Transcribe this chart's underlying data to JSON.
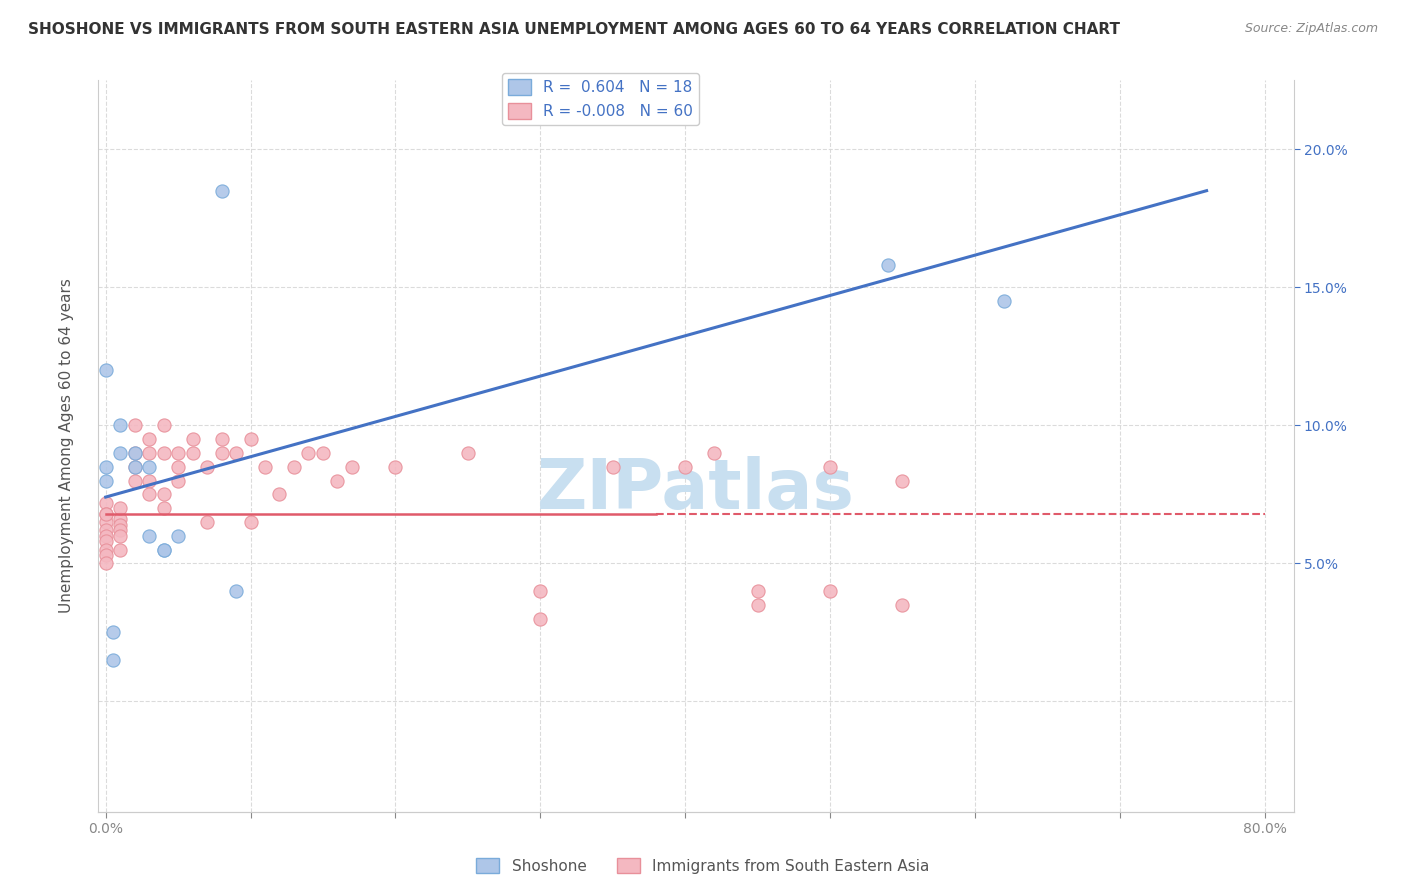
{
  "title": "SHOSHONE VS IMMIGRANTS FROM SOUTH EASTERN ASIA UNEMPLOYMENT AMONG AGES 60 TO 64 YEARS CORRELATION CHART",
  "source": "Source: ZipAtlas.com",
  "ylabel": "Unemployment Among Ages 60 to 64 years",
  "xlim": [
    -0.005,
    0.82
  ],
  "ylim": [
    -0.04,
    0.225
  ],
  "xticks": [
    0.0,
    0.1,
    0.2,
    0.3,
    0.4,
    0.5,
    0.6,
    0.7,
    0.8
  ],
  "xticklabels": [
    "0.0%",
    "",
    "",
    "",
    "",
    "",
    "",
    "",
    "80.0%"
  ],
  "yticks": [
    0.0,
    0.05,
    0.1,
    0.15,
    0.2
  ],
  "yticklabels": [
    "",
    "",
    "",
    "",
    ""
  ],
  "right_yticks": [
    0.05,
    0.1,
    0.15,
    0.2
  ],
  "right_yticklabels": [
    "5.0%",
    "10.0%",
    "15.0%",
    "20.0%"
  ],
  "background_color": "#ffffff",
  "grid_color": "#d8d8d8",
  "legend_R1": "R =  0.604",
  "legend_N1": "N = 18",
  "legend_R2": "R = -0.008",
  "legend_N2": "N = 60",
  "shoshone_color": "#aec6e8",
  "immigrant_color": "#f4b8c1",
  "shoshone_line_color": "#4472c4",
  "immigrant_line_color": "#e05a6a",
  "watermark": "ZIPatlas",
  "watermark_color": "#c8dff0",
  "shoshone_scatter": [
    [
      0.0,
      0.08
    ],
    [
      0.0,
      0.12
    ],
    [
      0.0,
      0.085
    ],
    [
      0.01,
      0.09
    ],
    [
      0.01,
      0.1
    ],
    [
      0.02,
      0.09
    ],
    [
      0.02,
      0.085
    ],
    [
      0.03,
      0.085
    ],
    [
      0.03,
      0.06
    ],
    [
      0.04,
      0.055
    ],
    [
      0.04,
      0.055
    ],
    [
      0.05,
      0.06
    ],
    [
      0.08,
      0.185
    ],
    [
      0.09,
      0.04
    ],
    [
      0.54,
      0.158
    ],
    [
      0.62,
      0.145
    ],
    [
      0.005,
      0.025
    ],
    [
      0.005,
      0.015
    ]
  ],
  "immigrant_scatter": [
    [
      0.0,
      0.072
    ],
    [
      0.0,
      0.068
    ],
    [
      0.0,
      0.065
    ],
    [
      0.0,
      0.062
    ],
    [
      0.0,
      0.06
    ],
    [
      0.0,
      0.058
    ],
    [
      0.0,
      0.055
    ],
    [
      0.0,
      0.053
    ],
    [
      0.0,
      0.05
    ],
    [
      0.0,
      0.068
    ],
    [
      0.01,
      0.066
    ],
    [
      0.01,
      0.064
    ],
    [
      0.01,
      0.062
    ],
    [
      0.01,
      0.07
    ],
    [
      0.01,
      0.06
    ],
    [
      0.01,
      0.055
    ],
    [
      0.02,
      0.1
    ],
    [
      0.02,
      0.09
    ],
    [
      0.02,
      0.085
    ],
    [
      0.02,
      0.08
    ],
    [
      0.03,
      0.095
    ],
    [
      0.03,
      0.09
    ],
    [
      0.03,
      0.08
    ],
    [
      0.03,
      0.075
    ],
    [
      0.04,
      0.1
    ],
    [
      0.04,
      0.09
    ],
    [
      0.04,
      0.075
    ],
    [
      0.04,
      0.07
    ],
    [
      0.05,
      0.09
    ],
    [
      0.05,
      0.085
    ],
    [
      0.05,
      0.08
    ],
    [
      0.06,
      0.095
    ],
    [
      0.06,
      0.09
    ],
    [
      0.07,
      0.085
    ],
    [
      0.07,
      0.065
    ],
    [
      0.08,
      0.095
    ],
    [
      0.08,
      0.09
    ],
    [
      0.09,
      0.09
    ],
    [
      0.1,
      0.095
    ],
    [
      0.1,
      0.065
    ],
    [
      0.11,
      0.085
    ],
    [
      0.12,
      0.075
    ],
    [
      0.13,
      0.085
    ],
    [
      0.14,
      0.09
    ],
    [
      0.15,
      0.09
    ],
    [
      0.16,
      0.08
    ],
    [
      0.17,
      0.085
    ],
    [
      0.2,
      0.085
    ],
    [
      0.25,
      0.09
    ],
    [
      0.3,
      0.04
    ],
    [
      0.3,
      0.03
    ],
    [
      0.35,
      0.085
    ],
    [
      0.4,
      0.085
    ],
    [
      0.42,
      0.09
    ],
    [
      0.45,
      0.04
    ],
    [
      0.45,
      0.035
    ],
    [
      0.5,
      0.085
    ],
    [
      0.5,
      0.04
    ],
    [
      0.55,
      0.08
    ],
    [
      0.55,
      0.035
    ]
  ],
  "shoshone_line": [
    [
      0.0,
      0.074
    ],
    [
      0.76,
      0.185
    ]
  ],
  "immigrant_line_solid": [
    [
      0.0,
      0.068
    ],
    [
      0.38,
      0.068
    ]
  ],
  "immigrant_line_dashed": [
    [
      0.38,
      0.068
    ],
    [
      0.8,
      0.068
    ]
  ]
}
